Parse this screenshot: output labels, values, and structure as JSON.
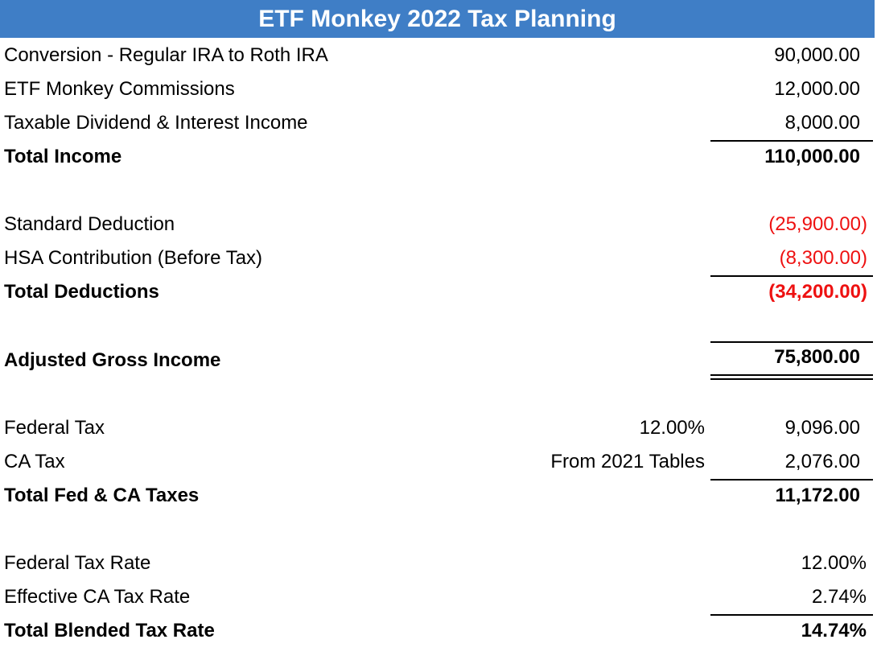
{
  "title": "ETF Monkey 2022 Tax Planning",
  "income": {
    "rows": [
      {
        "label": "Conversion - Regular IRA to Roth IRA",
        "amount": "90,000.00"
      },
      {
        "label": "ETF Monkey Commissions",
        "amount": "12,000.00"
      },
      {
        "label": "Taxable Dividend & Interest Income",
        "amount": "8,000.00"
      }
    ],
    "total": {
      "label": "Total Income",
      "amount": "110,000.00"
    }
  },
  "deductions": {
    "rows": [
      {
        "label": "Standard Deduction",
        "amount": "(25,900.00)"
      },
      {
        "label": "HSA Contribution (Before Tax)",
        "amount": "(8,300.00)"
      }
    ],
    "total": {
      "label": "Total Deductions",
      "amount": "(34,200.00)"
    }
  },
  "agi": {
    "label": "Adjusted Gross Income",
    "amount": "75,800.00"
  },
  "taxes": {
    "rows": [
      {
        "label": "Federal Tax",
        "note": "12.00%",
        "amount": "9,096.00"
      },
      {
        "label": "CA Tax",
        "note": "From 2021 Tables",
        "amount": "2,076.00"
      }
    ],
    "total": {
      "label": "Total Fed & CA Taxes",
      "amount": "11,172.00"
    }
  },
  "rates": {
    "rows": [
      {
        "label": "Federal Tax Rate",
        "amount": "12.00%"
      },
      {
        "label": "Effective CA Tax Rate",
        "amount": "2.74%"
      }
    ],
    "total": {
      "label": "Total Blended Tax Rate",
      "amount": "14.74%"
    }
  },
  "colors": {
    "header_background": "#3f7ec6",
    "header_text": "#ffffff",
    "negative": "#ee1111"
  }
}
